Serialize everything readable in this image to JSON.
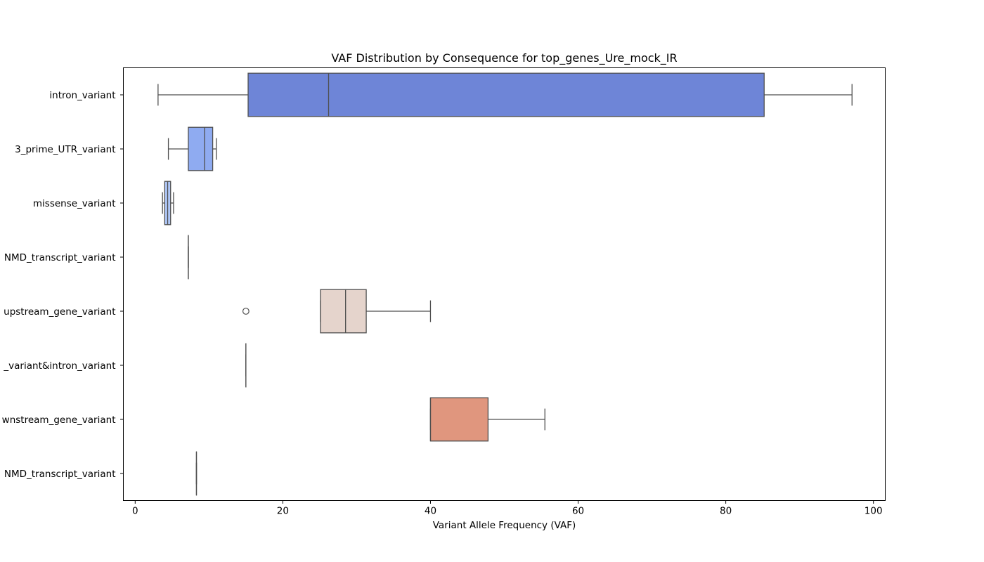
{
  "chart_data": {
    "type": "boxplot",
    "orientation": "horizontal",
    "title": "VAF Distribution by Consequence for top_genes_Ure_mock_IR",
    "xlabel": "Variant Allele Frequency (VAF)",
    "ylabel": "",
    "xlim": [
      -1.6,
      101.6
    ],
    "xticks": [
      0,
      20,
      40,
      60,
      80,
      100
    ],
    "grid": false,
    "legend": "none",
    "categories": [
      "intron_variant",
      "3_prime_UTR_variant",
      "missense_variant",
      "NMD_transcript_variant",
      "upstream_gene_variant",
      "_variant&intron_variant",
      "wnstream_gene_variant",
      "NMD_transcript_variant"
    ],
    "boxes": [
      {
        "min": 3.1,
        "q1": 15.3,
        "median": 26.2,
        "q3": 85.2,
        "max": 97.1,
        "outliers": [],
        "color": "#6e85d7"
      },
      {
        "min": 4.5,
        "q1": 7.2,
        "median": 9.4,
        "q3": 10.5,
        "max": 11.0,
        "outliers": [],
        "color": "#8fabf1"
      },
      {
        "min": 3.7,
        "q1": 4.0,
        "median": 4.4,
        "q3": 4.8,
        "max": 5.2,
        "outliers": [],
        "color": "#b0c8f8"
      },
      {
        "min": 7.2,
        "q1": 7.2,
        "median": 7.2,
        "q3": 7.2,
        "max": 7.2,
        "outliers": [],
        "color": "#cfd9ec"
      },
      {
        "min": 25.1,
        "q1": 25.1,
        "median": 28.5,
        "q3": 31.3,
        "max": 40.0,
        "outliers": [
          15.0
        ],
        "color": "#e5d4cc"
      },
      {
        "min": 15.0,
        "q1": 15.0,
        "median": 15.0,
        "q3": 15.0,
        "max": 15.0,
        "outliers": [],
        "color": "#f2c3ae"
      },
      {
        "min": 40.0,
        "q1": 40.0,
        "median": 40.0,
        "q3": 47.8,
        "max": 55.5,
        "outliers": [],
        "color": "#e0967e"
      },
      {
        "min": 8.3,
        "q1": 8.3,
        "median": 8.3,
        "q3": 8.3,
        "max": 8.3,
        "outliers": [],
        "color": "#d86e5a"
      }
    ],
    "colors": {
      "edge": "#4f4f4f",
      "axis": "#000000"
    }
  }
}
